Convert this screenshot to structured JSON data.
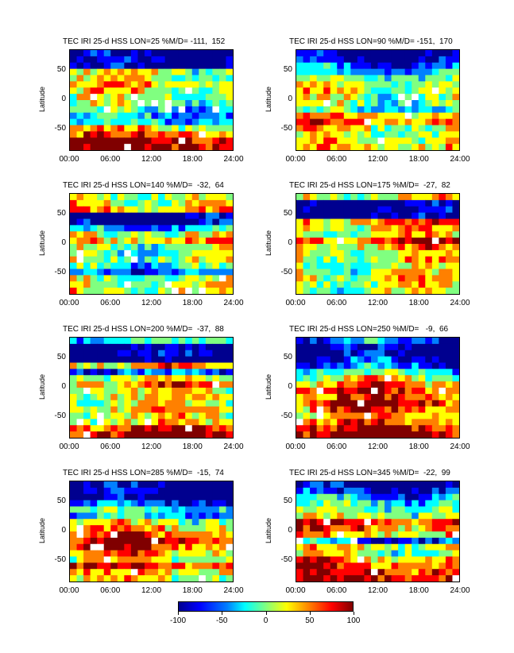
{
  "colormap": [
    "#00008f",
    "#0000ff",
    "#0080ff",
    "#00ffff",
    "#80ff80",
    "#ffff00",
    "#ff8000",
    "#ff0000",
    "#800000"
  ],
  "colorbar": {
    "ticks": [
      "-100",
      "-50",
      "0",
      "50",
      "100"
    ],
    "min": -100,
    "max": 100
  },
  "chart_data": [
    {
      "type": "heatmap",
      "title": "TEC IRI 25-d HSS LON=25 %M/D= -111,  152",
      "xlabel": "",
      "ylabel": "Latitude",
      "x_ticks": [
        "00:00",
        "06:00",
        "12:00",
        "18:00",
        "24:00"
      ],
      "y_ticks": [
        "50",
        "0",
        "-50"
      ],
      "ylim": [
        -90,
        90
      ],
      "xlim": [
        0,
        24
      ],
      "profile": [
        -100,
        -100,
        -100,
        10,
        20,
        35,
        20,
        10,
        0,
        -20,
        -40,
        -30,
        30,
        60,
        100,
        100
      ]
    },
    {
      "type": "heatmap",
      "title": "TEC IRI 25-d HSS LON=90 %M/D= -151,  170",
      "xlabel": "",
      "ylabel": "Latitude",
      "x_ticks": [
        "00:00",
        "06:00",
        "12:00",
        "18:00",
        "24:00"
      ],
      "y_ticks": [
        "50",
        "0",
        "-50"
      ],
      "ylim": [
        -90,
        90
      ],
      "xlim": [
        0,
        24
      ],
      "profile": [
        -100,
        -90,
        -60,
        -30,
        -10,
        5,
        20,
        10,
        0,
        -20,
        40,
        60,
        20,
        10,
        20,
        30
      ]
    },
    {
      "type": "heatmap",
      "title": "TEC IRI 25-d HSS LON=140 %M/D=  -32,  64",
      "xlabel": "",
      "ylabel": "Latitude",
      "x_ticks": [
        "00:00",
        "06:00",
        "12:00",
        "18:00",
        "24:00"
      ],
      "y_ticks": [
        "50",
        "0",
        "-50"
      ],
      "ylim": [
        -90,
        90
      ],
      "xlim": [
        0,
        24
      ],
      "profile": [
        10,
        20,
        40,
        -100,
        -100,
        -40,
        10,
        40,
        0,
        -10,
        10,
        -20,
        -50,
        0,
        10,
        20
      ]
    },
    {
      "type": "heatmap",
      "title": "TEC IRI 25-d HSS LON=175 %M/D=  -27,  82",
      "xlabel": "",
      "ylabel": "Latitude",
      "x_ticks": [
        "00:00",
        "06:00",
        "12:00",
        "18:00",
        "24:00"
      ],
      "y_ticks": [
        "50",
        "0",
        "-50"
      ],
      "ylim": [
        -90,
        90
      ],
      "xlim": [
        0,
        24
      ],
      "profile": [
        20,
        -100,
        -100,
        -100,
        50,
        30,
        20,
        70,
        40,
        10,
        20,
        0,
        10,
        30,
        20,
        10
      ]
    },
    {
      "type": "heatmap",
      "title": "TEC IRI 25-d HSS LON=200 %M/D=  -37,  88",
      "xlabel": "",
      "ylabel": "Latitude",
      "x_ticks": [
        "00:00",
        "06:00",
        "12:00",
        "18:00",
        "24:00"
      ],
      "y_ticks": [
        "50",
        "0",
        "-50"
      ],
      "ylim": [
        -90,
        90
      ],
      "xlim": [
        0,
        24
      ],
      "profile": [
        -20,
        -100,
        -100,
        -100,
        40,
        -60,
        20,
        50,
        20,
        30,
        10,
        40,
        20,
        30,
        70,
        90
      ]
    },
    {
      "type": "heatmap",
      "title": "TEC IRI 25-d HSS LON=250 %M/D=   -9,  66",
      "xlabel": "",
      "ylabel": "Latitude",
      "x_ticks": [
        "00:00",
        "06:00",
        "12:00",
        "18:00",
        "24:00"
      ],
      "y_ticks": [
        "50",
        "0",
        "-50"
      ],
      "ylim": [
        -90,
        90
      ],
      "xlim": [
        0,
        24
      ],
      "profile": [
        -60,
        -100,
        -100,
        -80,
        -60,
        -20,
        20,
        50,
        70,
        60,
        80,
        60,
        40,
        60,
        80,
        100
      ]
    },
    {
      "type": "heatmap",
      "title": "TEC IRI 25-d HSS LON=285 %M/D=  -15,  74",
      "xlabel": "",
      "ylabel": "Latitude",
      "x_ticks": [
        "00:00",
        "06:00",
        "12:00",
        "18:00",
        "24:00"
      ],
      "y_ticks": [
        "50",
        "0",
        "-50"
      ],
      "ylim": [
        -90,
        90
      ],
      "xlim": [
        0,
        24
      ],
      "profile": [
        -100,
        -100,
        -100,
        -60,
        -20,
        -40,
        10,
        40,
        60,
        80,
        70,
        40,
        20,
        70,
        30,
        20
      ]
    },
    {
      "type": "heatmap",
      "title": "TEC IRI 25-d HSS LON=345 %M/D=  -22,  99",
      "xlabel": "",
      "ylabel": "Latitude",
      "x_ticks": [
        "00:00",
        "06:00",
        "12:00",
        "18:00",
        "24:00"
      ],
      "y_ticks": [
        "50",
        "0",
        "-50"
      ],
      "ylim": [
        -90,
        90
      ],
      "xlim": [
        0,
        24
      ],
      "profile": [
        -100,
        -80,
        -40,
        -20,
        0,
        10,
        80,
        60,
        30,
        -60,
        20,
        10,
        40,
        60,
        80,
        90
      ]
    }
  ]
}
